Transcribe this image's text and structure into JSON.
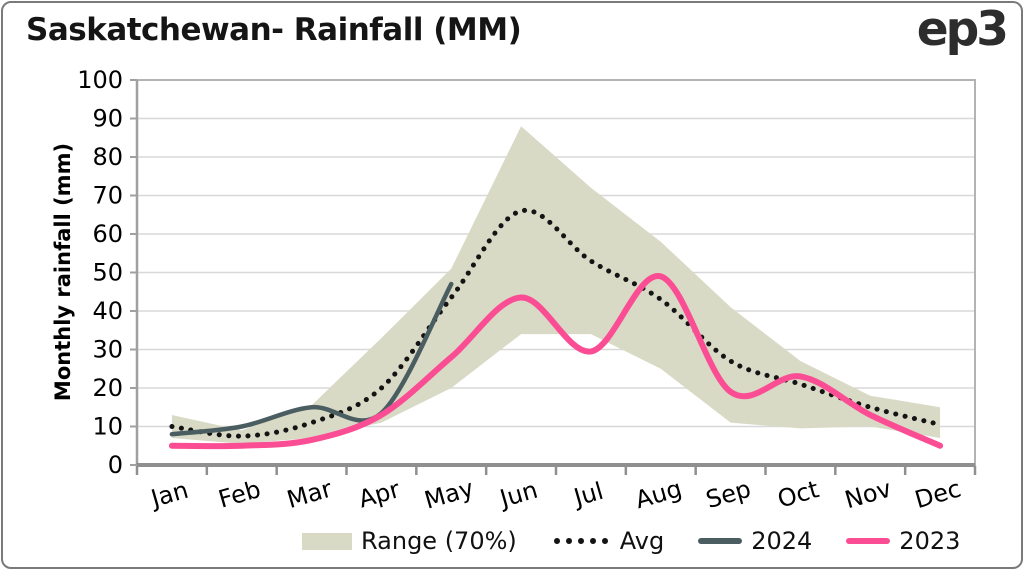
{
  "header": {
    "title": "Saskatchewan- Rainfall (MM)",
    "logo_text": "ep3"
  },
  "chart_data": {
    "type": "line",
    "title": "Saskatchewan- Rainfall (MM)",
    "xlabel": "",
    "ylabel": "Monthly rainfall (mm)",
    "ylim": [
      0,
      100
    ],
    "y_ticks": [
      0,
      10,
      20,
      30,
      40,
      50,
      60,
      70,
      80,
      90,
      100
    ],
    "categories": [
      "Jan",
      "Feb",
      "Mar",
      "Apr",
      "May",
      "Jun",
      "Jul",
      "Aug",
      "Sep",
      "Oct",
      "Nov",
      "Dec"
    ],
    "grid": "horizontal",
    "legend_position": "bottom",
    "band": {
      "name": "Range (70%)",
      "color": "#d9dac6",
      "lower": [
        7,
        5.5,
        7,
        11,
        20,
        34,
        34,
        25,
        11,
        9.5,
        10,
        7
      ],
      "upper": [
        13,
        9,
        15.5,
        33,
        51,
        88,
        72,
        58,
        41,
        27,
        18,
        15
      ]
    },
    "series": [
      {
        "name": "Avg",
        "style": "dotted",
        "color": "#141414",
        "values": [
          10,
          7.5,
          11,
          20,
          43.5,
          66,
          53,
          43,
          27,
          21,
          15,
          10.5
        ]
      },
      {
        "name": "2024",
        "style": "solid",
        "color": "#4a5d61",
        "values": [
          8,
          10,
          15,
          13.5,
          47,
          null,
          null,
          null,
          null,
          null,
          null,
          null
        ]
      },
      {
        "name": "2023",
        "style": "solid",
        "color": "#fb4d93",
        "values": [
          5,
          5,
          6.5,
          13,
          28,
          43.5,
          29.5,
          49,
          19,
          23,
          13,
          5
        ]
      }
    ]
  },
  "legend": {
    "range_label": "Range (70%)",
    "avg_label": "Avg",
    "y2024_label": "2024",
    "y2023_label": "2023"
  }
}
